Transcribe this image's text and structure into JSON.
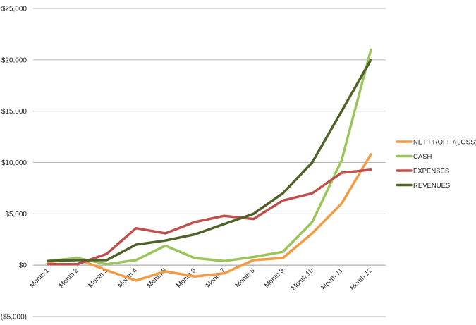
{
  "chart_data": {
    "type": "line",
    "categories": [
      "Month 1",
      "Month 2",
      "Month 3",
      "Month 4",
      "Month 5",
      "Month 6",
      "Month 7",
      "Month 8",
      "Month 9",
      "Month 10",
      "Month 11",
      "Month 12"
    ],
    "ylim": [
      -5000,
      25000
    ],
    "yticks": [
      -5000,
      0,
      5000,
      10000,
      15000,
      20000,
      25000
    ],
    "ytick_labels": [
      "($5,000)",
      "$0",
      "$5,000",
      "$10,000",
      "$15,000",
      "$20,000",
      "$25,000"
    ],
    "grid": true,
    "legend_position": "right",
    "series": [
      {
        "name": "NET PROFIT/(LOSS)",
        "color": "#f29a44",
        "values": [
          300,
          600,
          -500,
          -1500,
          -600,
          -1100,
          -800,
          500,
          700,
          3100,
          6000,
          10800
        ]
      },
      {
        "name": "CASH",
        "color": "#9bc55a",
        "values": [
          400,
          700,
          100,
          500,
          1900,
          700,
          400,
          800,
          1300,
          4200,
          10200,
          21000
        ]
      },
      {
        "name": "EXPENSES",
        "color": "#c0504d",
        "values": [
          100,
          100,
          1100,
          3600,
          3100,
          4200,
          4800,
          4500,
          6300,
          7000,
          9000,
          9300
        ]
      },
      {
        "name": "REVENUES",
        "color": "#4f6228",
        "values": [
          400,
          500,
          500,
          2000,
          2400,
          3000,
          4000,
          5000,
          7000,
          10000,
          15000,
          20000
        ]
      }
    ]
  }
}
